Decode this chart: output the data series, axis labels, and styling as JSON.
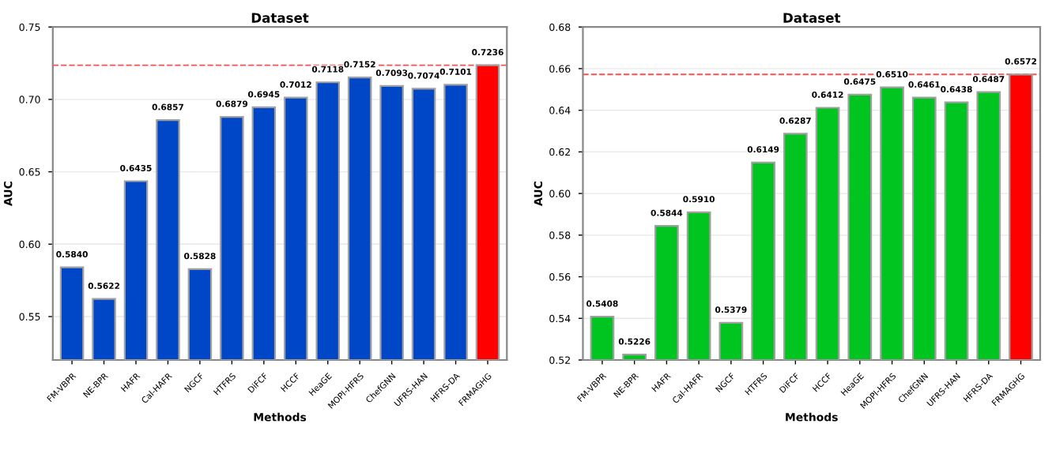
{
  "chart_data": [
    {
      "type": "bar",
      "title": "Dataset",
      "xlabel": "Methods",
      "ylabel": "AUC",
      "categories": [
        "FM-VBPR",
        "NE-BPR",
        "HAFR",
        "Cal-HAFR",
        "NGCF",
        "HTFRS",
        "DiFCF",
        "HCCF",
        "HeaGE",
        "MOPI-HFRS",
        "ChefGNN",
        "UFRS-HAN",
        "HFRS-DA",
        "FRMAGHG"
      ],
      "values": [
        0.584,
        0.5622,
        0.6435,
        0.6857,
        0.5828,
        0.6879,
        0.6945,
        0.7012,
        0.7118,
        0.7152,
        0.7093,
        0.7074,
        0.7101,
        0.7236
      ],
      "colors": [
        "#0047c8",
        "#0047c8",
        "#0047c8",
        "#0047c8",
        "#0047c8",
        "#0047c8",
        "#0047c8",
        "#0047c8",
        "#0047c8",
        "#0047c8",
        "#0047c8",
        "#0047c8",
        "#0047c8",
        "#ff0000"
      ],
      "ylim": [
        0.52,
        0.75
      ],
      "yticks": [
        {
          "value": 0.55,
          "label": "0.55"
        },
        {
          "value": 0.6,
          "label": "0.60"
        },
        {
          "value": 0.65,
          "label": "0.65"
        },
        {
          "value": 0.7,
          "label": "0.70"
        },
        {
          "value": 0.75,
          "label": "0.75"
        }
      ],
      "ref_lines": [
        {
          "axis": "y",
          "value": 0.7236,
          "color": "#ff0000",
          "line_style": "dashed"
        }
      ],
      "value_labels": [
        "0.5840",
        "0.5622",
        "0.6435",
        "0.6857",
        "0.5828",
        "0.6879",
        "0.6945",
        "0.7012",
        "0.7118",
        "0.7152",
        "0.7093",
        "0.7074",
        "0.7101",
        "0.7236"
      ],
      "grid": "y"
    },
    {
      "type": "bar",
      "title": "Dataset",
      "xlabel": "Methods",
      "ylabel": "AUC",
      "categories": [
        "FM-VBPR",
        "NE-BPR",
        "HAFR",
        "Cal-HAFR",
        "NGCF",
        "HTFRS",
        "DiFCF",
        "HCCF",
        "HeaGE",
        "MOPI-HFRS",
        "ChefGNN",
        "UFRS-HAN",
        "HFRS-DA",
        "FRMAGHG"
      ],
      "values": [
        0.5408,
        0.5226,
        0.5844,
        0.591,
        0.5379,
        0.6149,
        0.6287,
        0.6412,
        0.6475,
        0.651,
        0.6461,
        0.6438,
        0.6487,
        0.6572
      ],
      "colors": [
        "#00c41f",
        "#00c41f",
        "#00c41f",
        "#00c41f",
        "#00c41f",
        "#00c41f",
        "#00c41f",
        "#00c41f",
        "#00c41f",
        "#00c41f",
        "#00c41f",
        "#00c41f",
        "#00c41f",
        "#ff0000"
      ],
      "ylim": [
        0.52,
        0.68
      ],
      "yticks": [
        {
          "value": 0.52,
          "label": "0.52"
        },
        {
          "value": 0.54,
          "label": "0.54"
        },
        {
          "value": 0.56,
          "label": "0.56"
        },
        {
          "value": 0.58,
          "label": "0.58"
        },
        {
          "value": 0.6,
          "label": "0.60"
        },
        {
          "value": 0.62,
          "label": "0.62"
        },
        {
          "value": 0.64,
          "label": "0.64"
        },
        {
          "value": 0.66,
          "label": "0.66"
        },
        {
          "value": 0.68,
          "label": "0.68"
        }
      ],
      "ref_lines": [
        {
          "axis": "y",
          "value": 0.6572,
          "color": "#ff0000",
          "line_style": "dashed"
        }
      ],
      "value_labels": [
        "0.5408",
        "0.5226",
        "0.5844",
        "0.5910",
        "0.5379",
        "0.6149",
        "0.6287",
        "0.6412",
        "0.6475",
        "0.6510",
        "0.6461",
        "0.6438",
        "0.6487",
        "0.6572"
      ],
      "grid": "y"
    }
  ]
}
